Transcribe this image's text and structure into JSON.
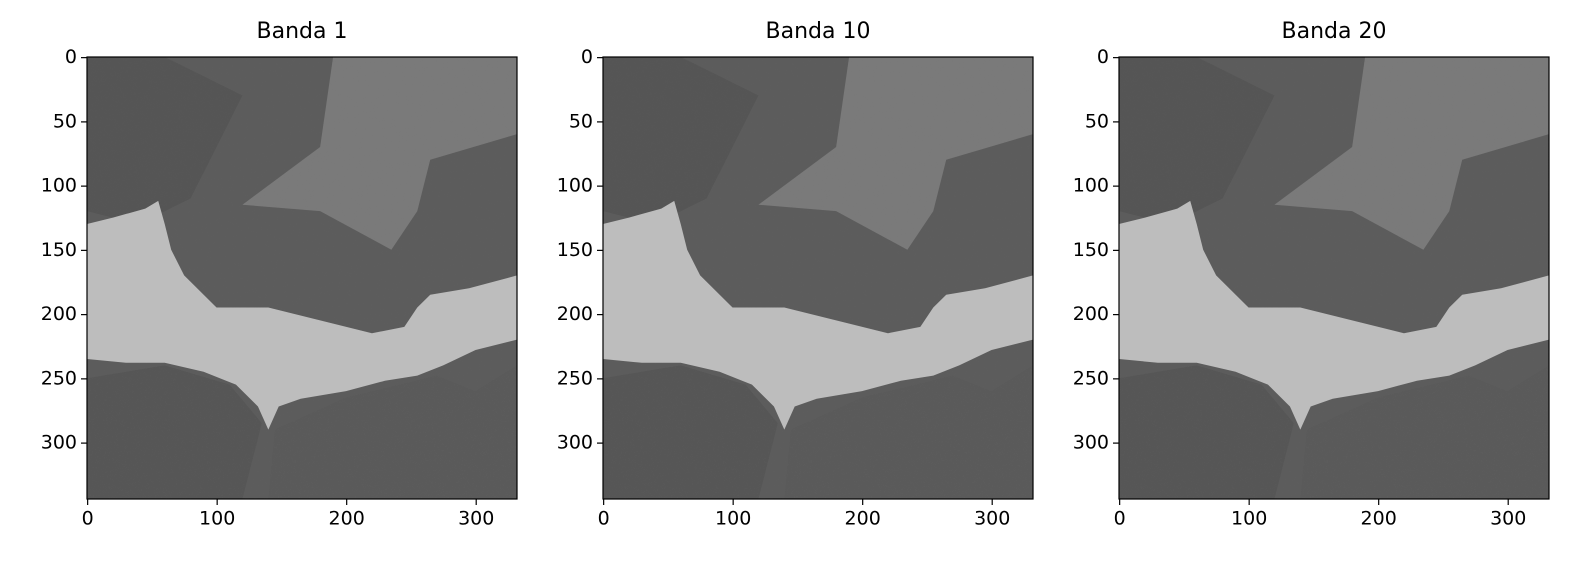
{
  "chart_data": [
    {
      "type": "image",
      "title": "Banda 1",
      "xlim": [
        -0.5,
        331.5
      ],
      "ylim": [
        343.5,
        -0.5
      ],
      "xticks": [
        0,
        100,
        200,
        300
      ],
      "yticks": [
        0,
        50,
        100,
        150,
        200,
        250,
        300
      ]
    },
    {
      "type": "image",
      "title": "Banda 10",
      "xlim": [
        -0.5,
        331.5
      ],
      "ylim": [
        343.5,
        -0.5
      ],
      "xticks": [
        0,
        100,
        200,
        300
      ],
      "yticks": [
        0,
        50,
        100,
        150,
        200,
        250,
        300
      ]
    },
    {
      "type": "image",
      "title": "Banda 20",
      "xlim": [
        -0.5,
        331.5
      ],
      "ylim": [
        343.5,
        -0.5
      ],
      "xticks": [
        0,
        100,
        200,
        300
      ],
      "yticks": [
        0,
        50,
        100,
        150,
        200,
        250,
        300
      ]
    }
  ]
}
